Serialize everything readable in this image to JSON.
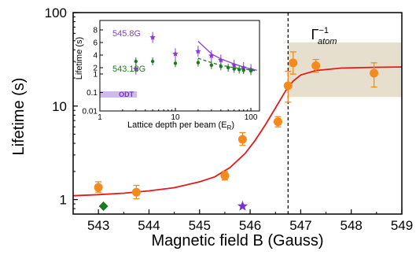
{
  "chart_data": [
    {
      "type": "scatter",
      "xlabel": "Magnetic field B (Gauss)",
      "ylabel": "Lifetime (s)",
      "xlim": [
        542.5,
        549
      ],
      "ylim": [
        0.7,
        100
      ],
      "yscale": "log",
      "x_ticks": [
        "543",
        "544",
        "545",
        "546",
        "547",
        "548",
        "549"
      ],
      "y_ticks": [
        "1",
        "10",
        "100"
      ],
      "series": [
        {
          "color": "#f28a1e",
          "marker": "circle",
          "x": [
            543.0,
            543.75,
            545.5,
            545.85,
            546.55,
            546.75,
            546.85,
            547.3,
            548.45
          ],
          "y": [
            1.35,
            1.2,
            1.8,
            4.4,
            6.8,
            16.5,
            29,
            27,
            22.5
          ],
          "y_err_low": [
            1.2,
            1.02,
            1.62,
            3.8,
            6.0,
            11.0,
            22.0,
            23.0,
            16.0
          ],
          "y_err_high": [
            1.55,
            1.42,
            2.0,
            5.2,
            7.7,
            23.5,
            38.0,
            31.5,
            29.0
          ]
        },
        {
          "color": "#1b7a1b",
          "marker": "diamond",
          "x": [
            543.1
          ],
          "y": [
            0.85
          ]
        },
        {
          "color": "#7a2fd0",
          "marker": "star",
          "x": [
            545.85
          ],
          "y": [
            0.85
          ]
        },
        {
          "color": "#e41a1a",
          "style": "solid-curve",
          "x": [
            542.5,
            543.0,
            543.5,
            544.0,
            544.5,
            545.0,
            545.3,
            545.6,
            545.9,
            546.1,
            546.3,
            546.5,
            546.7,
            546.85,
            547.0,
            547.3,
            547.8,
            548.5,
            549.0
          ],
          "y": [
            1.1,
            1.13,
            1.17,
            1.24,
            1.34,
            1.55,
            1.75,
            2.2,
            3.1,
            4.3,
            6.3,
            9.5,
            14.5,
            18.5,
            21.5,
            24.0,
            25.5,
            26.0,
            26.2
          ]
        }
      ],
      "vertical_line": {
        "x": 546.75,
        "style": "dashed"
      },
      "band": {
        "x_from": 546.75,
        "x_to": 549,
        "y_from": 12.5,
        "y_to": 48,
        "color": "#e7dfcd"
      },
      "band_label": "Γ",
      "band_label_super": "−1",
      "band_label_sub": "atom"
    },
    {
      "type": "scatter",
      "xlabel": "Lattice depth per beam (E",
      "xlabel_sub": "R",
      "xlabel_tail": ")",
      "ylabel": "Lifetime (s)",
      "xscale": "log",
      "xlim": [
        1,
        130
      ],
      "ylim": [
        0.01,
        10
      ],
      "x_ticks": [
        "1",
        "10",
        "100"
      ],
      "y_ticks": [
        "8",
        "6",
        "4",
        "2",
        "1",
        "0.1",
        "0.01"
      ],
      "series": [
        {
          "name": "545.8G",
          "color": "#8a38d8",
          "marker": "star",
          "fit": "solid",
          "x": [
            3,
            5,
            10,
            20,
            30,
            40,
            60,
            80,
            100
          ],
          "y": [
            1.8,
            6.8,
            4.2,
            4.6,
            3.9,
            3.2,
            2.4,
            2.0,
            1.7
          ]
        },
        {
          "name": "543.18G",
          "color": "#1b7a1b",
          "marker": "circle",
          "fit": "dashed",
          "x": [
            3,
            5,
            10,
            20,
            30,
            40,
            50,
            60,
            70,
            80,
            100
          ],
          "y": [
            3.0,
            3.0,
            2.7,
            2.8,
            2.4,
            2.2,
            2.0,
            1.8,
            1.7,
            1.6,
            1.5
          ]
        }
      ],
      "purple_fit": {
        "x": [
          20,
          30,
          40,
          60,
          80,
          100,
          120
        ],
        "y": [
          6.2,
          4.2,
          3.4,
          2.6,
          2.1,
          1.8,
          1.6
        ]
      },
      "green_fit": {
        "x": [
          20,
          30,
          40,
          60,
          80,
          100,
          120
        ],
        "y": [
          3.5,
          2.8,
          2.4,
          2.0,
          1.8,
          1.6,
          1.5
        ]
      },
      "odt_band": {
        "label": "ODT",
        "x_from": 1,
        "x_to": 3.1,
        "color": "#cdbbe8"
      }
    }
  ]
}
